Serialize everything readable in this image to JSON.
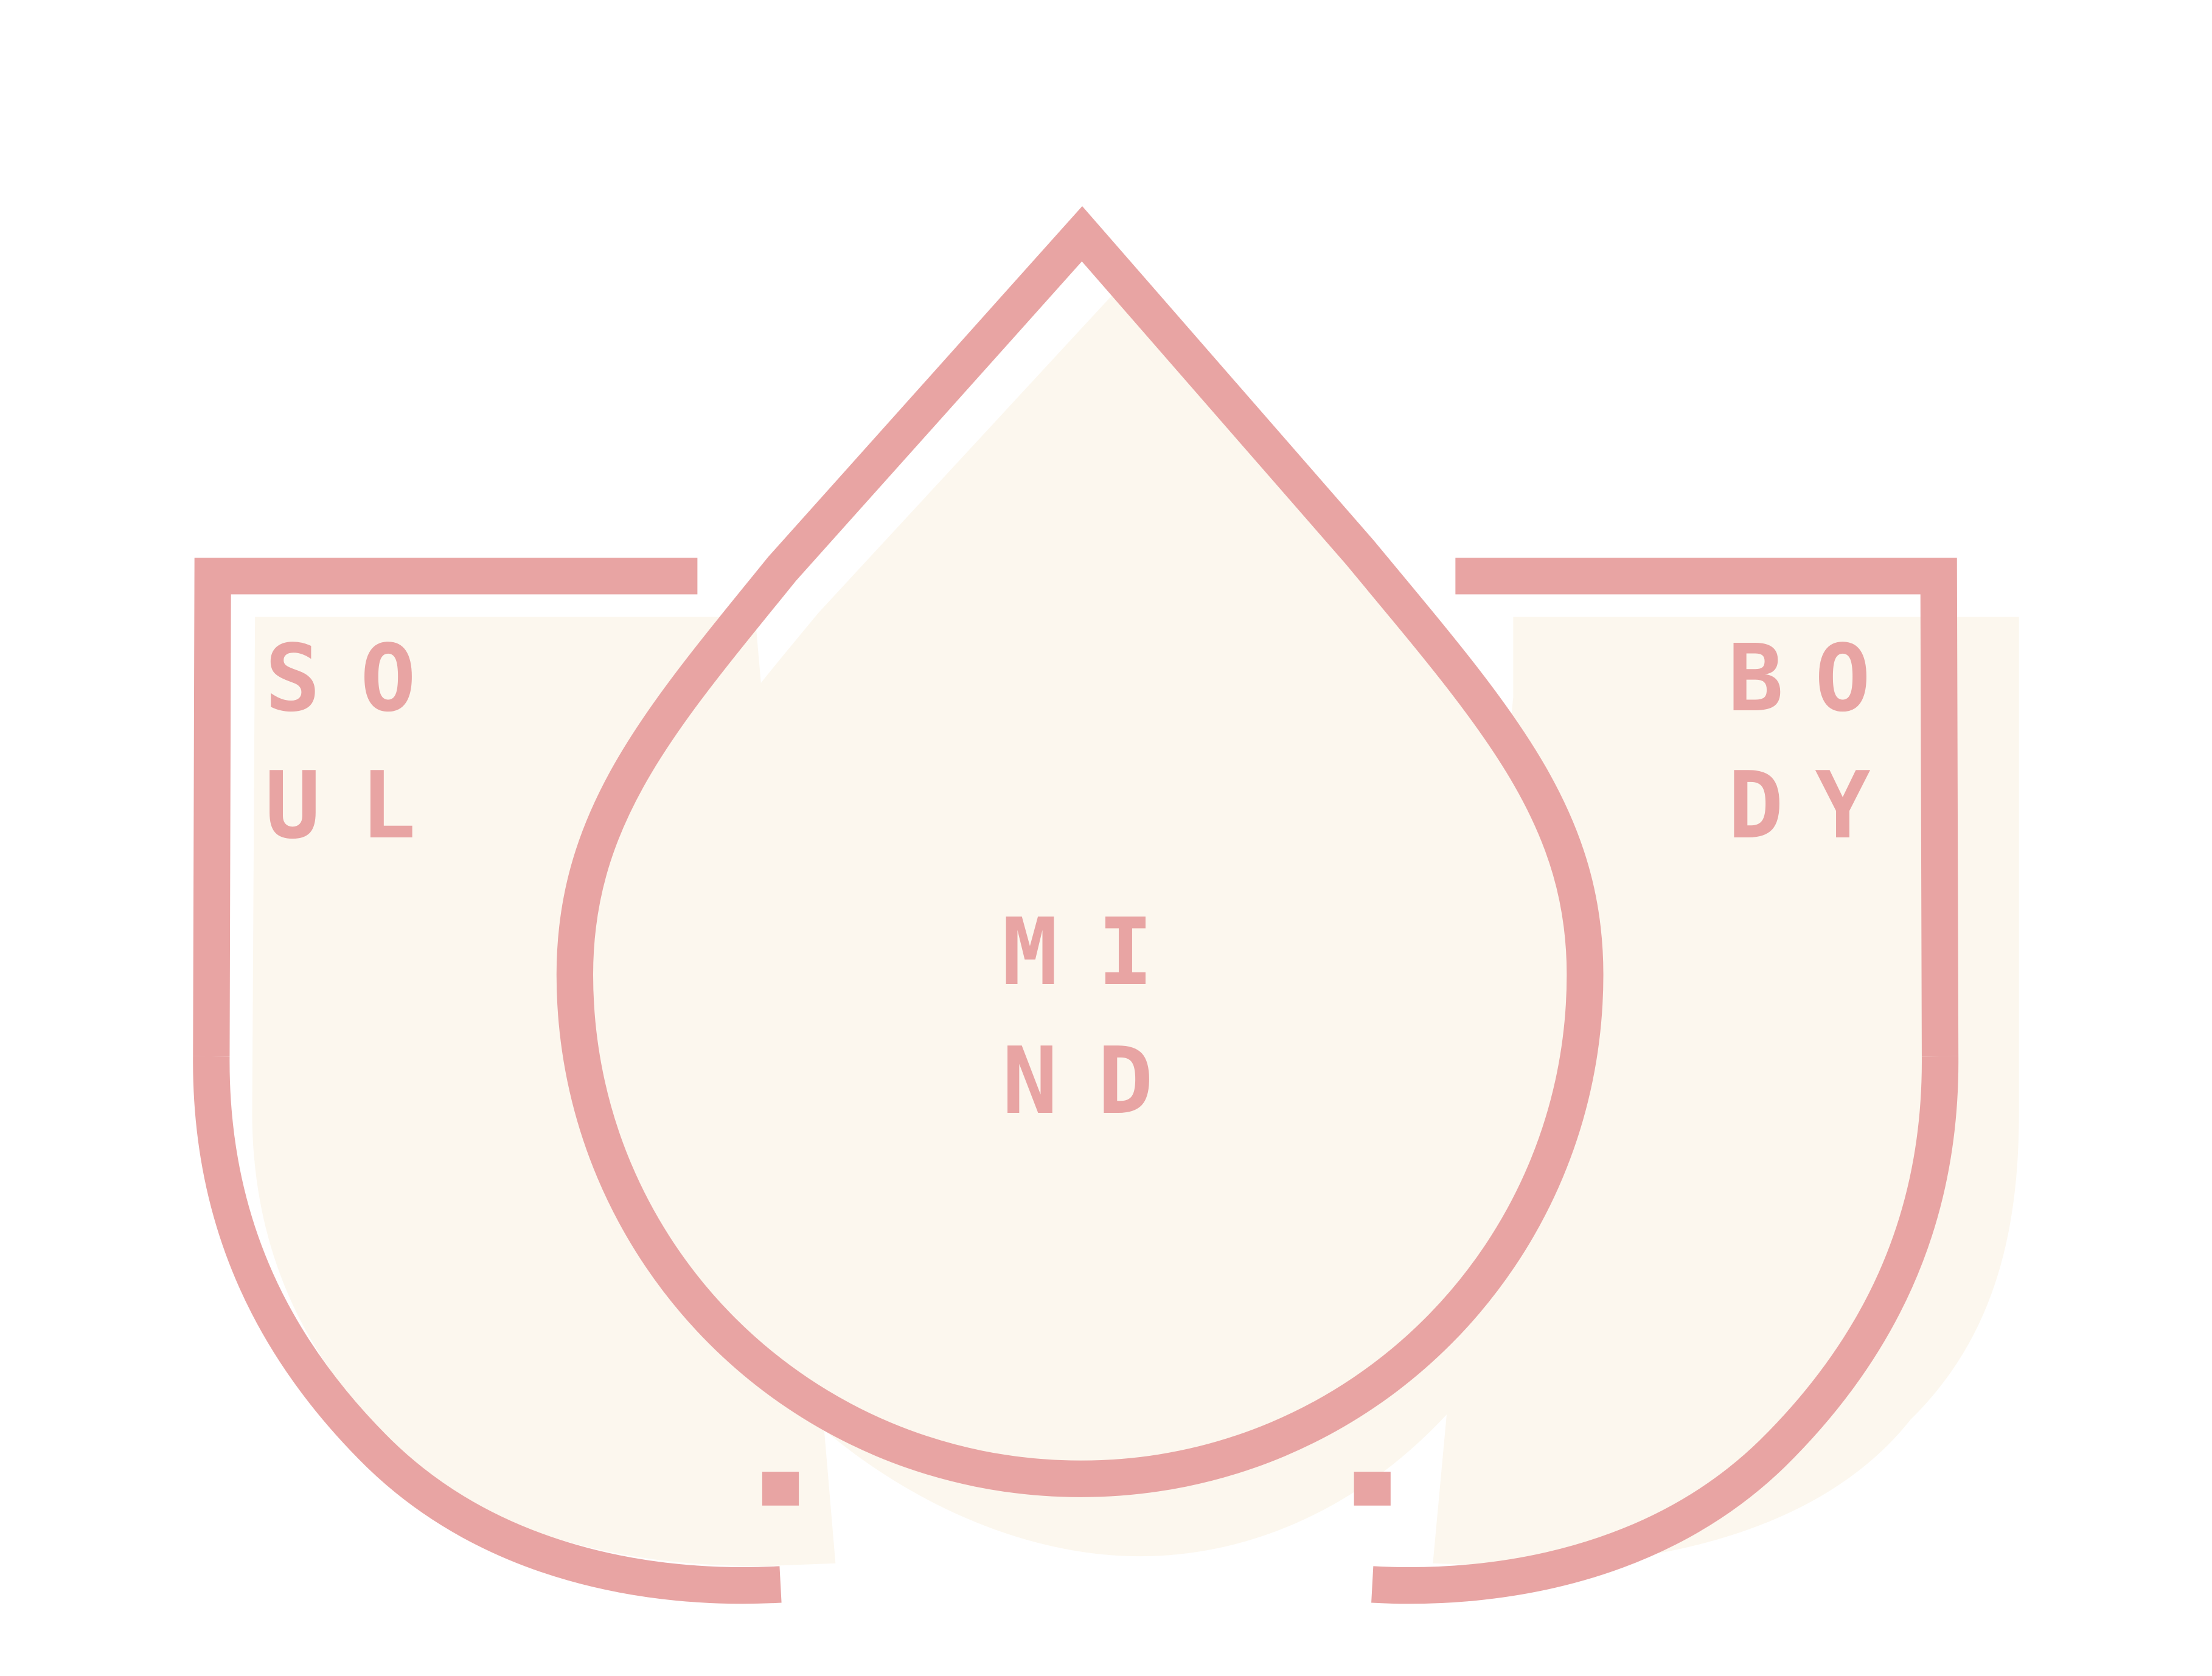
{
  "logo": {
    "name": "Soul Mind Body lotus emblem",
    "colors": {
      "outline": "#E8A4A3",
      "fill": "#FCF7EE",
      "background": "#FFFFFF"
    },
    "petals": {
      "left": {
        "label": "SOUL",
        "rows": [
          [
            "S",
            "O"
          ],
          [
            "U",
            "L"
          ]
        ]
      },
      "center": {
        "label": "MIND",
        "rows": [
          [
            "M",
            "I"
          ],
          [
            "N",
            "D"
          ]
        ]
      },
      "right": {
        "label": "BODY",
        "rows": [
          [
            "B",
            "O"
          ],
          [
            "D",
            "Y"
          ]
        ]
      }
    }
  }
}
